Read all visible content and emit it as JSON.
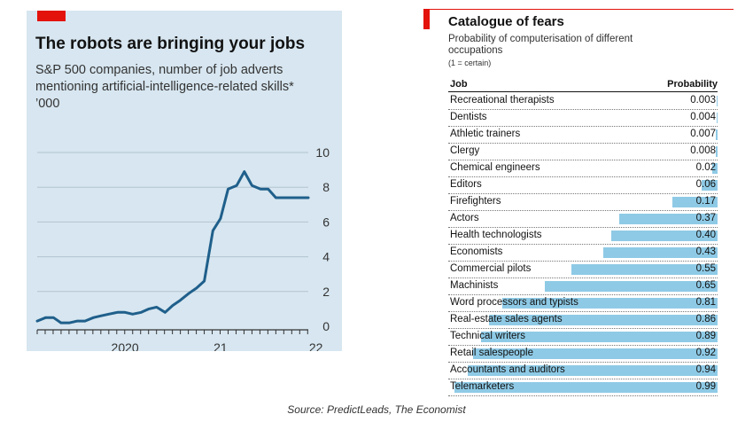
{
  "chart_data": [
    {
      "type": "line",
      "title": "The robots are bringing your jobs",
      "subtitle_lines": [
        "S&P 500 companies, number of job adverts",
        "mentioning artificial-intelligence-related skills*",
        "’000"
      ],
      "x_ticks": [
        "2020",
        "21",
        "22"
      ],
      "y_ticks": [
        0,
        2,
        4,
        6,
        8,
        10
      ],
      "ylim": [
        0,
        10
      ],
      "xlim": [
        2019.58,
        2022.42
      ],
      "grid": true,
      "series": [
        {
          "color": "#1f5f8b",
          "x": [
            2019.58,
            2019.67,
            2019.75,
            2019.83,
            2019.92,
            2020.0,
            2020.08,
            2020.17,
            2020.25,
            2020.33,
            2020.42,
            2020.5,
            2020.58,
            2020.67,
            2020.75,
            2020.83,
            2020.92,
            2021.0,
            2021.08,
            2021.17,
            2021.25,
            2021.33,
            2021.42,
            2021.5,
            2021.58,
            2021.67,
            2021.75,
            2021.83,
            2021.92,
            2022.0,
            2022.08,
            2022.17,
            2022.25,
            2022.33,
            2022.42
          ],
          "y": [
            0.3,
            0.5,
            0.5,
            0.2,
            0.2,
            0.3,
            0.3,
            0.5,
            0.6,
            0.7,
            0.8,
            0.8,
            0.7,
            0.8,
            1.0,
            1.1,
            0.8,
            1.2,
            1.5,
            1.9,
            2.2,
            2.6,
            5.5,
            6.2,
            7.9,
            8.1,
            8.9,
            8.1,
            7.9,
            7.9,
            7.4,
            7.4,
            7.4,
            7.4,
            7.4
          ]
        }
      ]
    },
    {
      "type": "bar",
      "orientation": "horizontal",
      "title": "Catalogue of fears",
      "subtitle_lines": [
        "Probability of computerisation of different",
        "occupations"
      ],
      "note": "(1 = certain)",
      "columns": [
        "Job",
        "Probability"
      ],
      "bar_color": "#8ecae6",
      "xlim": [
        0,
        1
      ],
      "categories": [
        "Recreational therapists",
        "Dentists",
        "Athletic trainers",
        "Clergy",
        "Chemical engineers",
        "Editors",
        "Firefighters",
        "Actors",
        "Health technologists",
        "Economists",
        "Commercial pilots",
        "Machinists",
        "Word processors and typists",
        "Real-estate sales agents",
        "Technical writers",
        "Retail salespeople",
        "Accountants and auditors",
        "Telemarketers"
      ],
      "value_labels": [
        "0.003",
        "0.004",
        "0.007",
        "0.008",
        "0.02",
        "0.06",
        "0.17",
        "0.37",
        "0.40",
        "0.43",
        "0.55",
        "0.65",
        "0.81",
        "0.86",
        "0.89",
        "0.92",
        "0.94",
        "0.99"
      ],
      "values": [
        0.003,
        0.004,
        0.007,
        0.008,
        0.02,
        0.06,
        0.17,
        0.37,
        0.4,
        0.43,
        0.55,
        0.65,
        0.81,
        0.86,
        0.89,
        0.92,
        0.94,
        0.99
      ]
    }
  ],
  "source": "Source: PredictLeads, The Economist"
}
